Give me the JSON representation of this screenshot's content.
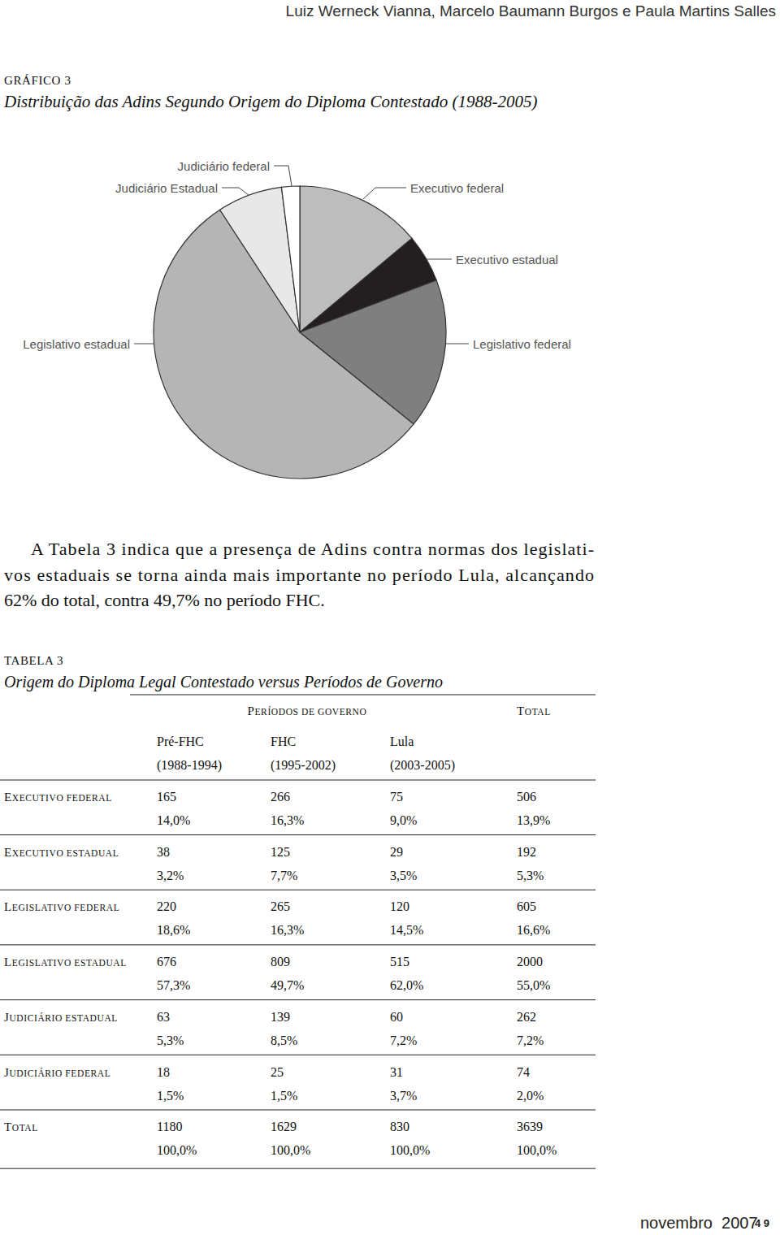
{
  "header": {
    "authors": "Luiz Werneck Vianna, Marcelo Baumann Burgos e Paula Martins Salles"
  },
  "figure_label": "GRÁFICO 3",
  "chart_data": {
    "type": "pie",
    "title": "Distribuição das Adins Segundo Origem do Diploma Contestado (1988-2005)",
    "categories": [
      "Executivo federal",
      "Executivo estadual",
      "Legislativo federal",
      "Legislativo estadual",
      "Judiciário Estadual",
      "Judiciário federal"
    ],
    "values": [
      13.9,
      5.3,
      16.6,
      55.0,
      7.2,
      2.0
    ],
    "colors": [
      "#bdbdbd",
      "#231f20",
      "#7f7f7f",
      "#b5b5b5",
      "#e8e8e8",
      "#ffffff"
    ]
  },
  "paragraph": {
    "lines": [
      "A Tabela 3 indica que a presença de Adins contra normas dos legislati-",
      "vos estaduais se torna ainda mais importante no período Lula, alcançando",
      "62% do total, contra 49,7% no período FHC."
    ]
  },
  "table": {
    "label": "TABELA 3",
    "title": "Origem do Diploma Legal Contestado versus Períodos de Governo",
    "group_header": "PERÍODOS DE GOVERNO",
    "total_header": "TOTAL",
    "periods": [
      {
        "name": "Pré-FHC",
        "years": "(1988-1994)"
      },
      {
        "name": "FHC",
        "years": "(1995-2002)"
      },
      {
        "name": "Lula",
        "years": "(2003-2005)"
      }
    ],
    "rows": [
      {
        "label": "EXECUTIVO FEDERAL",
        "counts": [
          165,
          266,
          75,
          506
        ],
        "percents": [
          "14,0%",
          "16,3%",
          "9,0%",
          "13,9%"
        ]
      },
      {
        "label": "EXECUTIVO ESTADUAL",
        "counts": [
          38,
          125,
          29,
          192
        ],
        "percents": [
          "3,2%",
          "7,7%",
          "3,5%",
          "5,3%"
        ]
      },
      {
        "label": "LEGISLATIVO FEDERAL",
        "counts": [
          220,
          265,
          120,
          605
        ],
        "percents": [
          "18,6%",
          "16,3%",
          "14,5%",
          "16,6%"
        ]
      },
      {
        "label": "LEGISLATIVO ESTADUAL",
        "counts": [
          676,
          809,
          515,
          2000
        ],
        "percents": [
          "57,3%",
          "49,7%",
          "62,0%",
          "55,0%"
        ]
      },
      {
        "label": "JUDICIÁRIO ESTADUAL",
        "counts": [
          63,
          139,
          60,
          262
        ],
        "percents": [
          "5,3%",
          "8,5%",
          "7,2%",
          "7,2%"
        ]
      },
      {
        "label": "JUDICIÁRIO FEDERAL",
        "counts": [
          18,
          25,
          31,
          74
        ],
        "percents": [
          "1,5%",
          "1,5%",
          "3,7%",
          "2,0%"
        ]
      },
      {
        "label": "TOTAL",
        "counts": [
          1180,
          1629,
          830,
          3639
        ],
        "percents": [
          "100,0%",
          "100,0%",
          "100,0%",
          "100,0%"
        ]
      }
    ]
  },
  "footer": {
    "date": "novembro  2007",
    "page": "4 9"
  }
}
